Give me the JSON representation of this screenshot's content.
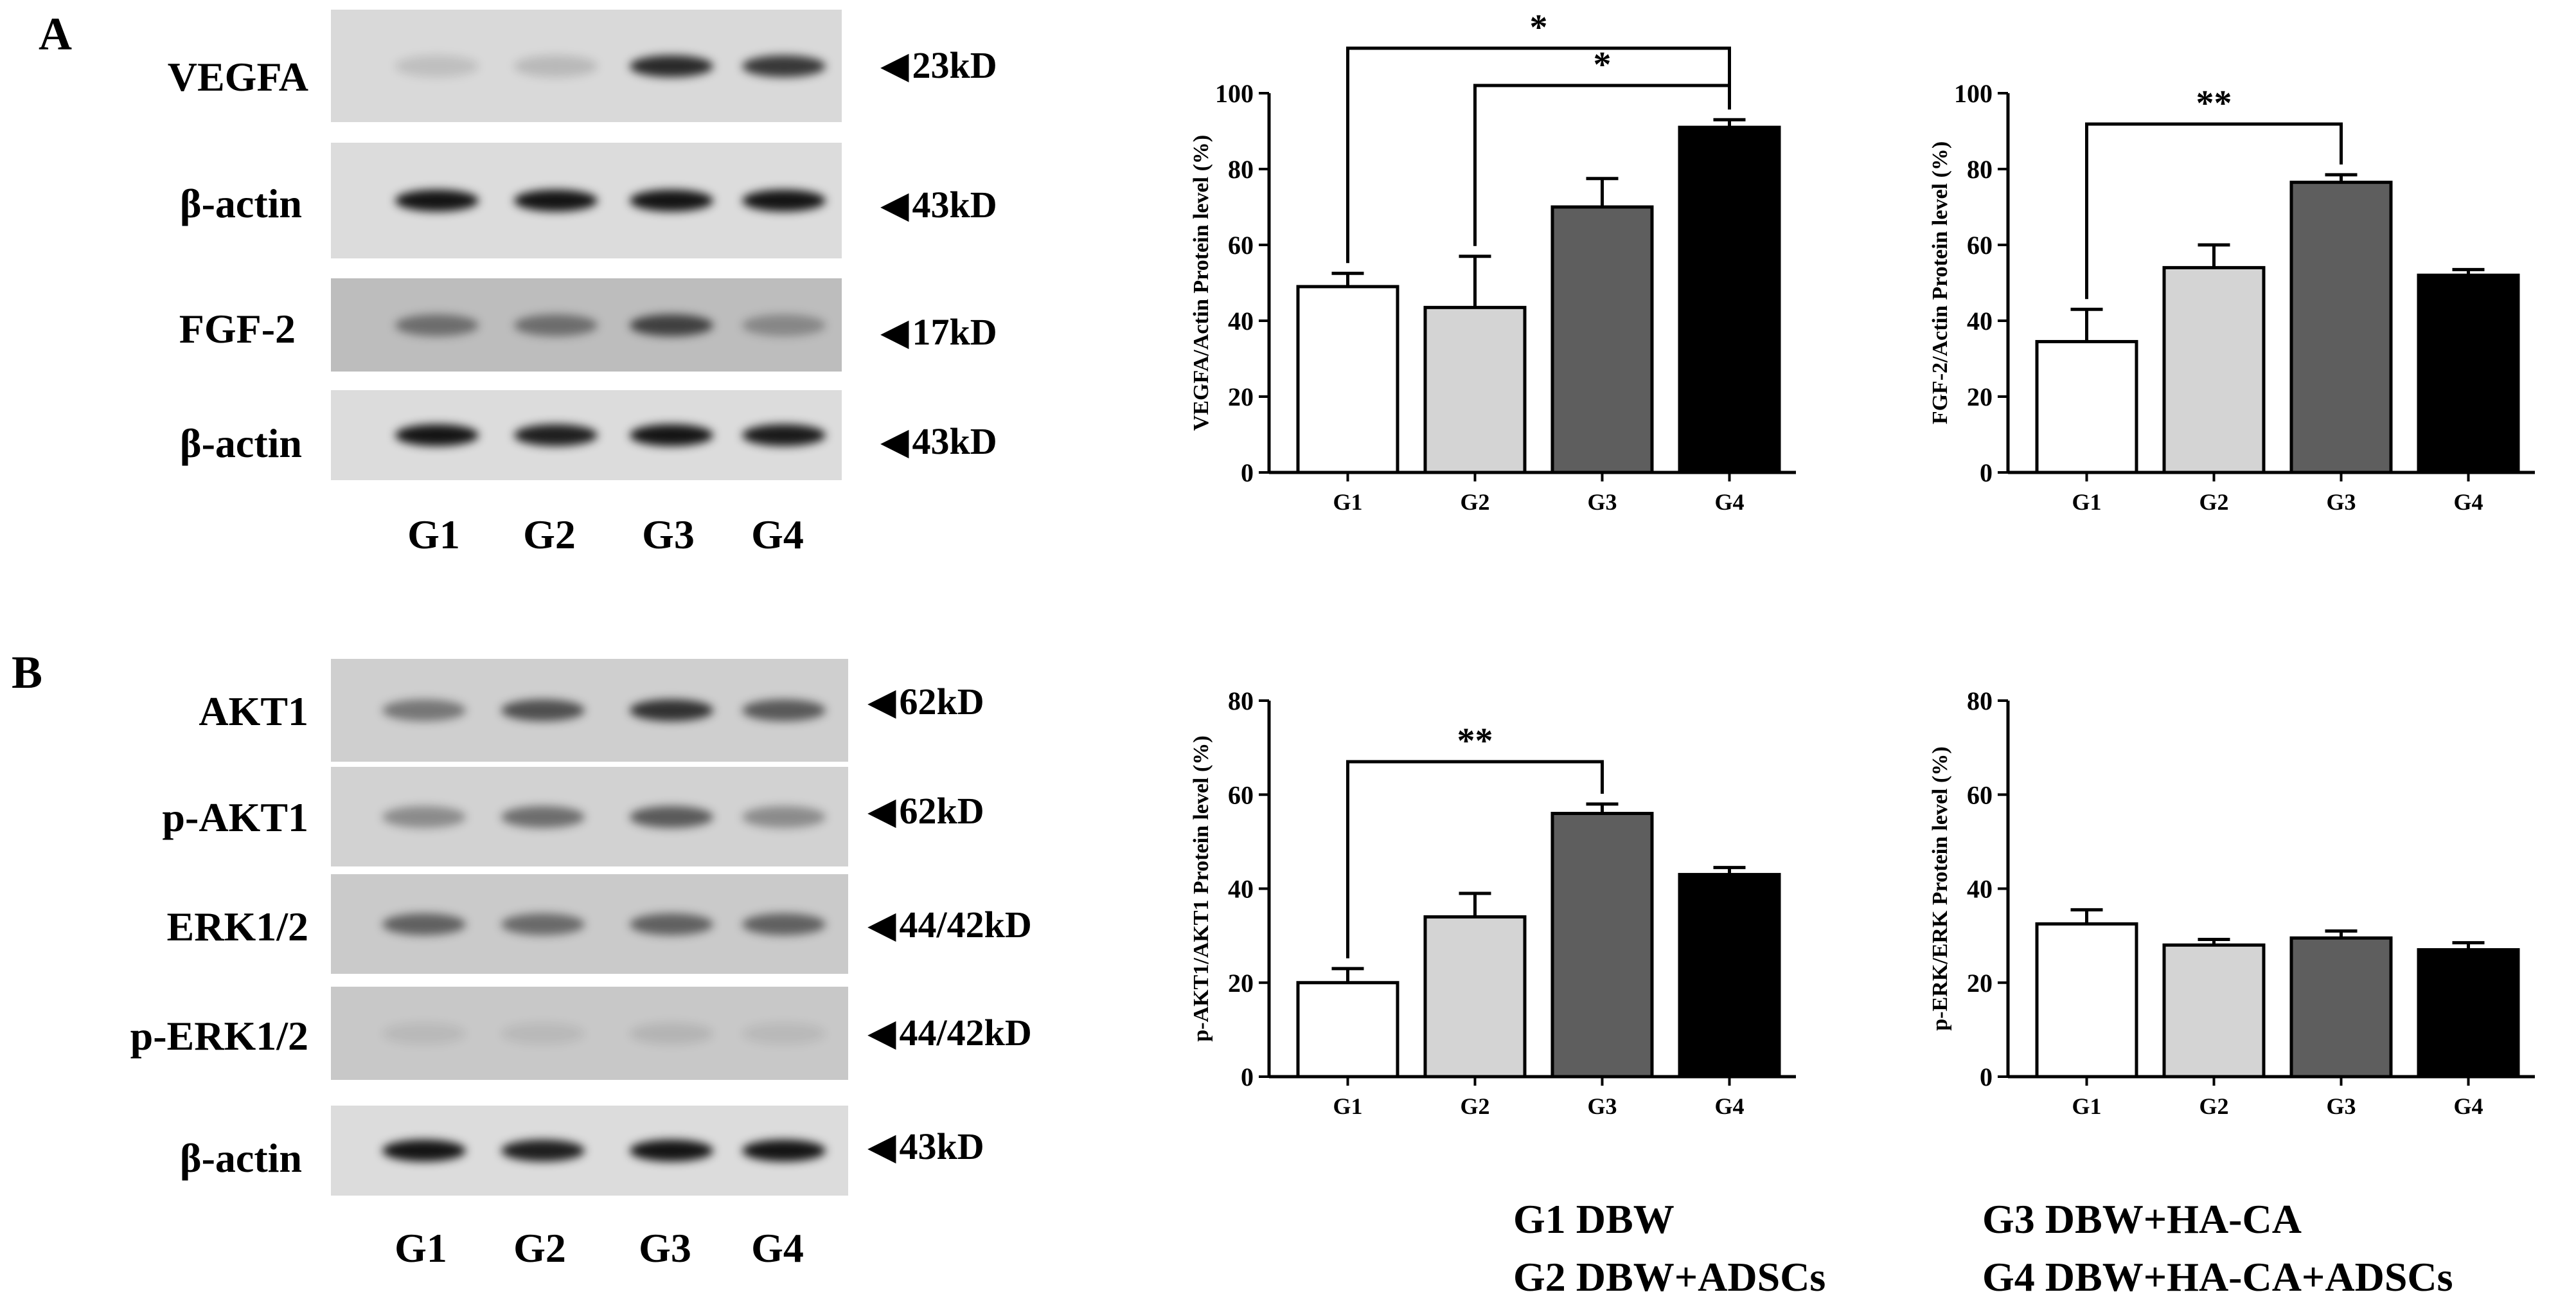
{
  "panel_labels": [
    "A",
    "B"
  ],
  "lane_labels": [
    "G1",
    "G2",
    "G3",
    "G4"
  ],
  "blots_a": [
    {
      "protein": "VEGFA",
      "size": "23kD",
      "bg": "#d9d9d9",
      "bands": [
        0.12,
        0.15,
        0.85,
        0.78
      ]
    },
    {
      "protein": "β-actin",
      "size": "43kD",
      "bg": "#dcdcdc",
      "bands": [
        0.95,
        0.95,
        0.95,
        0.95
      ]
    },
    {
      "protein": "FGF-2",
      "size": "17kD",
      "bg": "#bdbdbd",
      "bands": [
        0.45,
        0.45,
        0.7,
        0.3
      ]
    },
    {
      "protein": "β-actin",
      "size": "43kD",
      "bg": "#dcdcdc",
      "bands": [
        0.95,
        0.9,
        0.95,
        0.92
      ]
    }
  ],
  "blots_b": [
    {
      "protein": "AKT1",
      "size": "62kD",
      "bg": "#cfcfcf",
      "bands": [
        0.45,
        0.65,
        0.8,
        0.6
      ]
    },
    {
      "protein": "p-AKT1",
      "size": "62kD",
      "bg": "#d2d2d2",
      "bands": [
        0.35,
        0.5,
        0.6,
        0.35
      ]
    },
    {
      "protein": "ERK1/2",
      "size": "44/42kD",
      "bg": "#cacaca",
      "bands": [
        0.55,
        0.5,
        0.55,
        0.55
      ]
    },
    {
      "protein": "p-ERK1/2",
      "size": "44/42kD",
      "bg": "#c8c8c8",
      "bands": [
        0.08,
        0.08,
        0.1,
        0.08
      ]
    },
    {
      "protein": "β-actin",
      "size": "43kD",
      "bg": "#dcdcdc",
      "bands": [
        0.95,
        0.9,
        0.95,
        0.95
      ]
    }
  ],
  "chart_data": [
    {
      "type": "bar",
      "categories": [
        "G1",
        "G2",
        "G3",
        "G4"
      ],
      "values": [
        49,
        43.5,
        70,
        91
      ],
      "errors": [
        3.5,
        13.5,
        7.5,
        2
      ],
      "ylabel": "VEGFA/Actin Protein level (%)",
      "ylim": [
        0,
        100
      ],
      "yticks": [
        0,
        20,
        40,
        60,
        80,
        100
      ],
      "colors": [
        "#ffffff",
        "#d4d4d4",
        "#5e5e5e",
        "#000000"
      ],
      "significance": [
        {
          "from": "G1",
          "to": "G4",
          "label": "*"
        },
        {
          "from": "G2",
          "to": "G4",
          "label": "*"
        }
      ]
    },
    {
      "type": "bar",
      "categories": [
        "G1",
        "G2",
        "G3",
        "G4"
      ],
      "values": [
        34.5,
        54,
        76.5,
        52
      ],
      "errors": [
        8.5,
        6,
        2,
        1.5
      ],
      "ylabel": "FGF-2/Actin Protein level (%)",
      "ylim": [
        0,
        100
      ],
      "yticks": [
        0,
        20,
        40,
        60,
        80,
        100
      ],
      "colors": [
        "#ffffff",
        "#d4d4d4",
        "#5e5e5e",
        "#000000"
      ],
      "significance": [
        {
          "from": "G1",
          "to": "G3",
          "label": "**"
        }
      ]
    },
    {
      "type": "bar",
      "categories": [
        "G1",
        "G2",
        "G3",
        "G4"
      ],
      "values": [
        20,
        34,
        56,
        43
      ],
      "errors": [
        3,
        5,
        2,
        1.5
      ],
      "ylabel": "p-AKT1/AKT1 Protein level (%)",
      "ylim": [
        0,
        80
      ],
      "yticks": [
        0,
        20,
        40,
        60,
        80
      ],
      "colors": [
        "#ffffff",
        "#d4d4d4",
        "#5e5e5e",
        "#000000"
      ],
      "significance": [
        {
          "from": "G1",
          "to": "G3",
          "label": "**"
        }
      ]
    },
    {
      "type": "bar",
      "categories": [
        "G1",
        "G2",
        "G3",
        "G4"
      ],
      "values": [
        32.5,
        28,
        29.5,
        27
      ],
      "errors": [
        3,
        1.2,
        1.5,
        1.5
      ],
      "ylabel": "p-ERK/ERK Protein level (%)",
      "ylim": [
        0,
        80
      ],
      "yticks": [
        0,
        20,
        40,
        60,
        80
      ],
      "colors": [
        "#ffffff",
        "#d4d4d4",
        "#5e5e5e",
        "#000000"
      ],
      "significance": []
    }
  ],
  "legend": [
    "G1 DBW",
    "G2 DBW+ADSCs",
    "G3 DBW+HA-CA",
    "G4 DBW+HA-CA+ADSCs"
  ]
}
